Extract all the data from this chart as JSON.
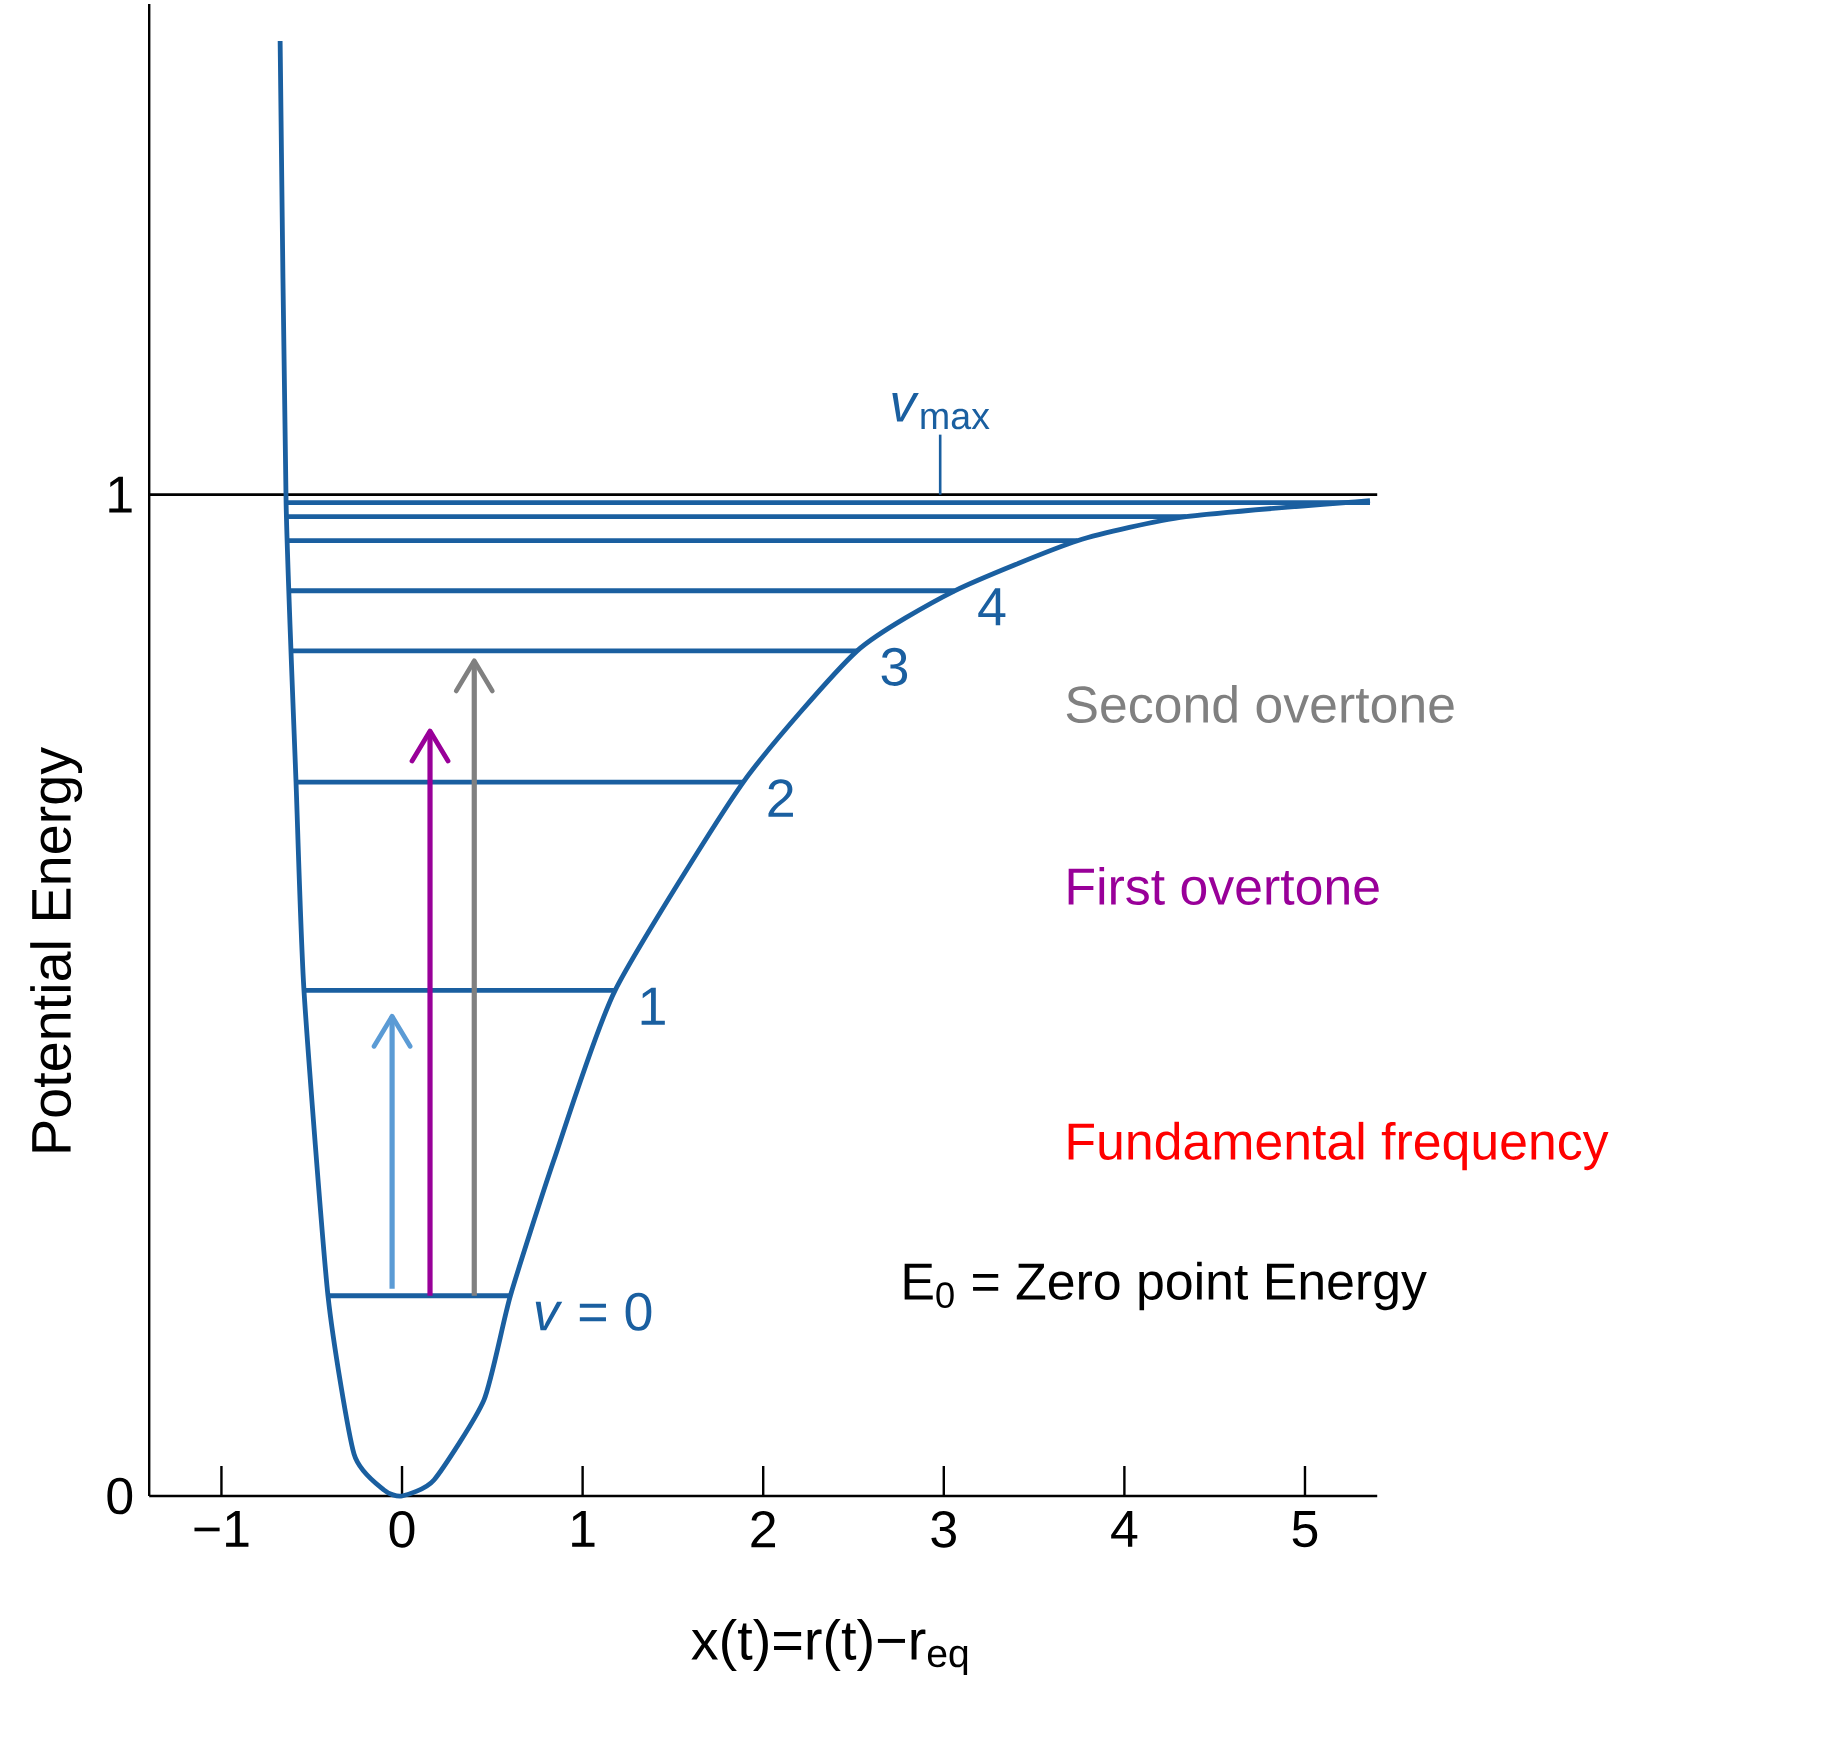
{
  "chart_data": {
    "type": "line",
    "xlabel": "x(t)=r(t)−r$_{eq}$",
    "ylabel": "Potential Energy",
    "xlim": [
      -1.4,
      5.4
    ],
    "ylim": [
      0,
      1.49
    ],
    "xticks": [
      {
        "value": -1,
        "label": "−1"
      },
      0,
      1,
      2,
      3,
      4,
      5
    ],
    "yticks": [
      0,
      1
    ],
    "series": [
      {
        "color": "#1a5fa0",
        "x": [
          -0.675,
          -0.642,
          -0.587,
          -0.543,
          -0.41,
          -0.266,
          -0.1,
          0,
          0.177,
          0.454,
          0.6,
          0.84,
          1.18,
          1.89,
          2.52,
          3.06,
          3.74,
          4.34,
          5.36
        ],
        "values": [
          1.453,
          0.992,
          0.713,
          0.505,
          0.2,
          0.042,
          0.006,
          0,
          0.016,
          0.096,
          0.2,
          0.335,
          0.505,
          0.713,
          0.844,
          0.904,
          0.954,
          0.978,
          0.994
        ]
      },
      {
        "color": "#1a5fa0",
        "x": [
          -0.41,
          0.6
        ],
        "values": [
          0.2,
          0.2
        ]
      },
      {
        "color": "#1a5fa0",
        "x": [
          -0.543,
          1.18
        ],
        "values": [
          0.505,
          0.505
        ]
      },
      {
        "color": "#1a5fa0",
        "x": [
          -0.587,
          1.89
        ],
        "values": [
          0.713,
          0.713
        ]
      },
      {
        "color": "#1a5fa0",
        "x": [
          -0.61,
          2.52
        ],
        "values": [
          0.844,
          0.844
        ]
      },
      {
        "color": "#1a5fa0",
        "x": [
          -0.62,
          3.06
        ],
        "values": [
          0.904,
          0.904
        ]
      },
      {
        "color": "#1a5fa0",
        "x": [
          -0.63,
          3.74
        ],
        "values": [
          0.954,
          0.954
        ]
      },
      {
        "color": "#1a5fa0",
        "x": [
          -0.635,
          4.34
        ],
        "values": [
          0.978,
          0.978
        ]
      },
      {
        "color": "#1a5fa0",
        "x": [
          -0.642,
          5.36
        ],
        "values": [
          0.992,
          0.992
        ]
      },
      {
        "color": "#5b9bd5",
        "x": [
          -0.055,
          -0.055
        ],
        "values": [
          0.207,
          0.479
        ]
      },
      {
        "color": "#990099",
        "x": [
          0.155,
          0.155
        ],
        "values": [
          0.2,
          0.764
        ]
      },
      {
        "color": "#808080",
        "x": [
          0.4,
          0.4
        ],
        "values": [
          0.2,
          0.834
        ]
      }
    ],
    "ref_lines": [
      {
        "axis": "y",
        "value": 1,
        "color": "#000000"
      }
    ],
    "annotations": [
      {
        "text": "*v* = 0",
        "x": 0.6,
        "y": 0.2
      },
      {
        "text": "1",
        "x": 1.18,
        "y": 0.505
      },
      {
        "text": "2",
        "x": 1.89,
        "y": 0.713
      },
      {
        "text": "3",
        "x": 2.52,
        "y": 0.844
      },
      {
        "text": "4",
        "x": 3.06,
        "y": 0.904
      },
      {
        "text": "*v*$_{max}$",
        "x": 2.98,
        "y": 1
      },
      "Second overtone",
      "First overtone",
      "Fundamental frequency",
      "E$_{0}$ = Zero point Energy"
    ]
  }
}
